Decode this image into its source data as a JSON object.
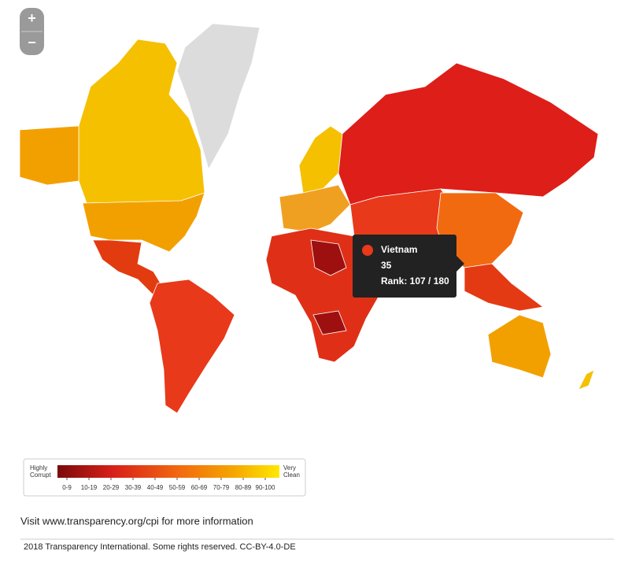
{
  "zoom": {
    "in": "+",
    "out": "−"
  },
  "tooltip": {
    "country": "Vietnam",
    "score": "35",
    "rank": "Rank: 107 / 180"
  },
  "legend": {
    "low_label": [
      "Highly",
      "Corrupt"
    ],
    "high_label": [
      "Very",
      "Clean"
    ],
    "ranges": [
      "0-9",
      "10-19",
      "20-29",
      "30-39",
      "40-49",
      "50-59",
      "60-69",
      "70-79",
      "80-89",
      "90-100"
    ]
  },
  "footer": {
    "link": "Visit www.transparency.org/cpi for more information",
    "copyright": "2018 Transparency International. Some rights reserved. CC-BY-4.0-DE"
  }
}
